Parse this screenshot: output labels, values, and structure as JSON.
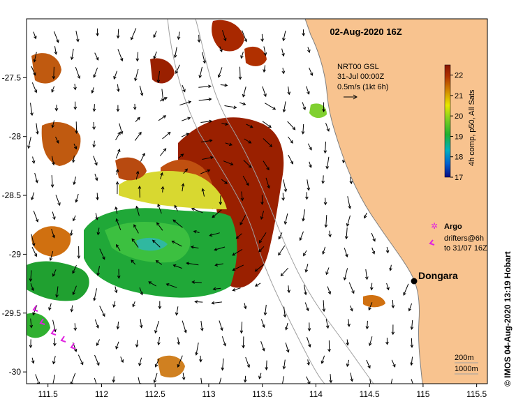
{
  "title": "02-Aug-2020 16Z",
  "product": {
    "line1": "NRT00 GSL",
    "line2": "31-Jul 00:00Z",
    "scale": "0.5m/s (1kt 6h)"
  },
  "colorbar": {
    "label": "4h comp, p50, All Sats",
    "ticks": [
      "22",
      "21",
      "20",
      "19",
      "18",
      "17"
    ],
    "min": 17,
    "max": 22.5,
    "colors": [
      "#0a0a80",
      "#0060d0",
      "#00b0c0",
      "#20b030",
      "#80d020",
      "#e8e800",
      "#d08000",
      "#b03000",
      "#8a1500"
    ]
  },
  "legend": {
    "argo": "Argo",
    "drifters_line1": "drifters@6h",
    "drifters_line2": "to 31/07 16Z",
    "argo_color": "#e020e0",
    "drifter_color": "#e020e0"
  },
  "place": {
    "name": "Dongara",
    "lon": 114.92,
    "lat": -29.25
  },
  "contours": {
    "line1": "200m",
    "line2": "1000m"
  },
  "credit": "© IMOS 04-Aug-2020 13:19 Hobart",
  "axes": {
    "x_ticks": [
      "111.5",
      "112",
      "112.5",
      "113",
      "113.5",
      "114",
      "114.5",
      "115",
      "115.5"
    ],
    "y_ticks": [
      "-27.5",
      "-28",
      "-28.5",
      "-29",
      "-29.5",
      "-30"
    ],
    "lon_range": [
      111.3,
      115.6
    ],
    "lat_range": [
      -30.1,
      -27.0
    ]
  },
  "land_color": "#f8c38f"
}
